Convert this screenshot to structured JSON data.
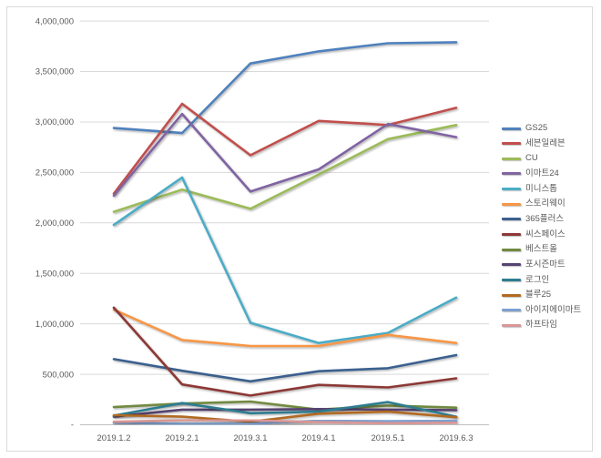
{
  "chart_data": {
    "type": "line",
    "title": "",
    "xlabel": "",
    "ylabel": "",
    "categories": [
      "2019.1.2",
      "2019.2.1",
      "2019.3.1",
      "2019.4.1",
      "2019.5.1",
      "2019.6.3"
    ],
    "series": [
      {
        "name": "GS25",
        "color": "#4F81BD",
        "values": [
          2940000,
          2890000,
          3580000,
          3700000,
          3780000,
          3790000
        ]
      },
      {
        "name": "세븐일레븐",
        "color": "#C0504D",
        "values": [
          2290000,
          3180000,
          2670000,
          3010000,
          2970000,
          3140000
        ]
      },
      {
        "name": "CU",
        "color": "#9BBB59",
        "values": [
          2110000,
          2330000,
          2140000,
          2480000,
          2830000,
          2970000
        ]
      },
      {
        "name": "이마트24",
        "color": "#8064A2",
        "values": [
          2270000,
          3080000,
          2310000,
          2530000,
          2980000,
          2850000
        ]
      },
      {
        "name": "미니스톱",
        "color": "#4BACC6",
        "values": [
          1980000,
          2450000,
          1010000,
          810000,
          910000,
          1260000
        ]
      },
      {
        "name": "스토리웨이",
        "color": "#F79646",
        "values": [
          1140000,
          840000,
          780000,
          780000,
          890000,
          810000
        ]
      },
      {
        "name": "365플러스",
        "color": "#3B618E",
        "values": [
          650000,
          535000,
          430000,
          530000,
          560000,
          690000
        ]
      },
      {
        "name": "씨스페이스",
        "color": "#8C3836",
        "values": [
          1160000,
          400000,
          290000,
          395000,
          370000,
          460000
        ]
      },
      {
        "name": "베스트올",
        "color": "#71893F",
        "values": [
          175000,
          210000,
          230000,
          150000,
          190000,
          170000
        ]
      },
      {
        "name": "포시즌마트",
        "color": "#554370",
        "values": [
          80000,
          150000,
          150000,
          155000,
          150000,
          145000
        ]
      },
      {
        "name": "로그인",
        "color": "#2E7C8F",
        "values": [
          90000,
          215000,
          115000,
          130000,
          225000,
          80000
        ]
      },
      {
        "name": "블루25",
        "color": "#B16A21",
        "values": [
          95000,
          80000,
          30000,
          110000,
          130000,
          75000
        ]
      },
      {
        "name": "아이지에이마트",
        "color": "#7DA0CF",
        "values": [
          20000,
          10000,
          10000,
          40000,
          35000,
          40000
        ]
      },
      {
        "name": "하프타임",
        "color": "#D99694",
        "values": [
          30000,
          45000,
          45000,
          25000,
          15000,
          20000
        ]
      }
    ],
    "ylim": [
      0,
      4000000
    ],
    "ytick_step": 500000,
    "ytick_labels": [
      "-",
      "500,000",
      "1,000,000",
      "1,500,000",
      "2,000,000",
      "2,500,000",
      "3,000,000",
      "3,500,000",
      "4,000,000"
    ],
    "grid": "horizontal-only",
    "legend_position": "right"
  },
  "colors": {
    "background": "#FFFFFF",
    "gridline": "#D9D9D9",
    "axis_line": "#BFBFBF",
    "axis_text": "#595959",
    "frame_border": "#D9D9D9"
  }
}
